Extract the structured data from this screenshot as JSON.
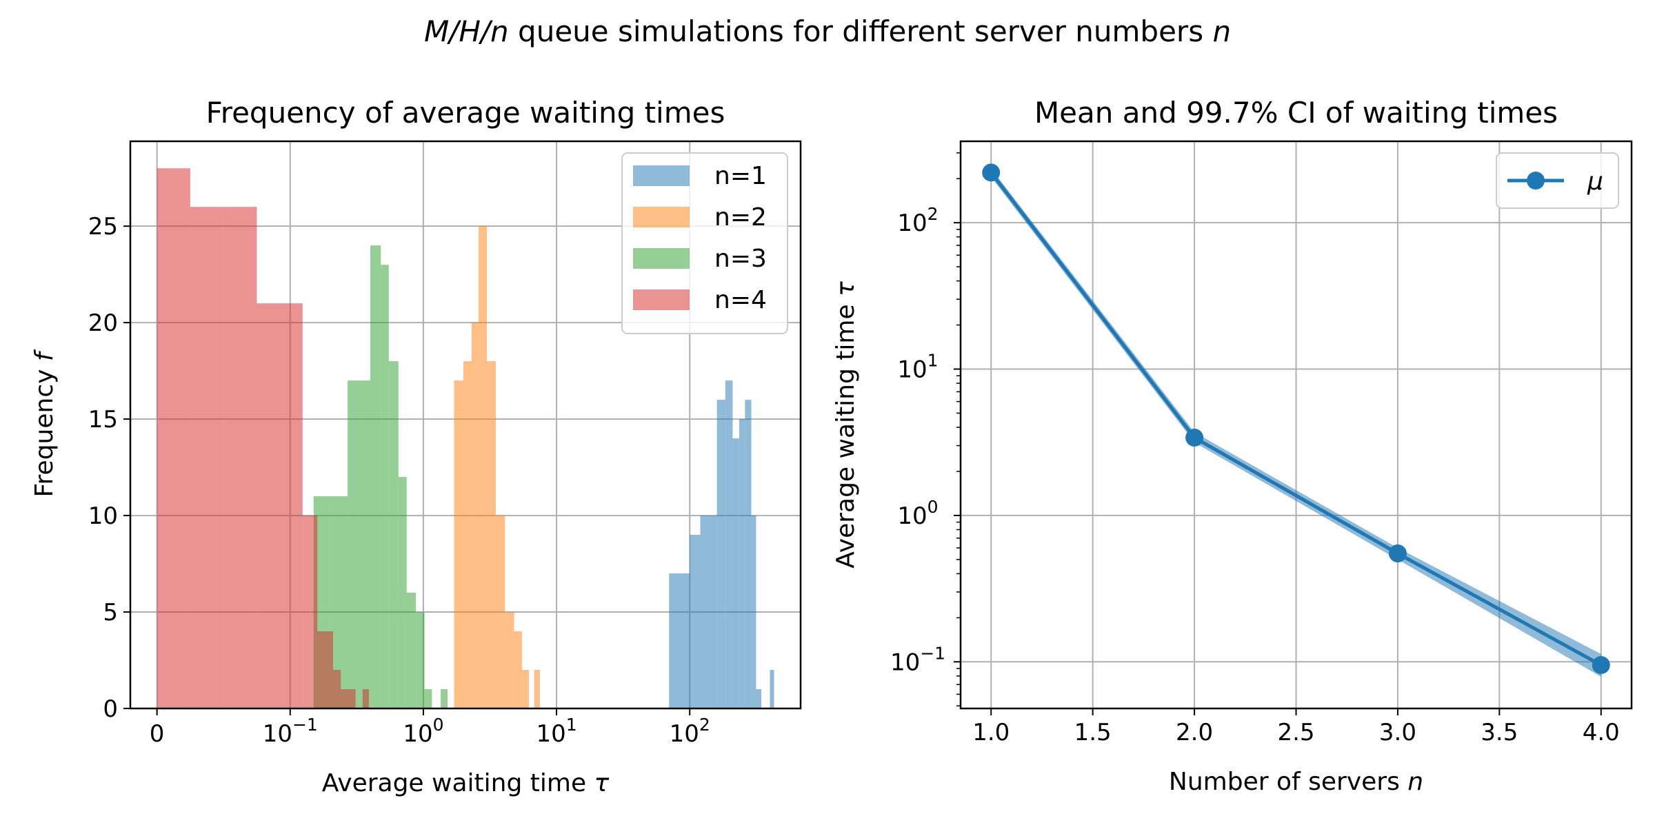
{
  "figure": {
    "suptitle": {
      "prefix_italic": "M/H/n",
      "middle": " queue simulations for different server numbers ",
      "suffix_italic": "n"
    }
  },
  "chart_data": [
    {
      "type": "histogram",
      "title": "Frequency of average waiting times",
      "xlabel": {
        "text": "Average waiting time ",
        "symbol": "τ"
      },
      "ylabel": {
        "text": "Frequency ",
        "symbol": "f"
      },
      "xscale": "symlog",
      "xlim": [
        -0.02,
        680
      ],
      "ylim": [
        0,
        29.4
      ],
      "xticks": [
        {
          "value": 0,
          "label": "0"
        },
        {
          "value": 0.1,
          "base": "10",
          "exp": "−1"
        },
        {
          "value": 1,
          "base": "10",
          "exp": "0"
        },
        {
          "value": 10,
          "base": "10",
          "exp": "1"
        },
        {
          "value": 100,
          "base": "10",
          "exp": "2"
        }
      ],
      "yticks": [
        0,
        5,
        10,
        15,
        20,
        25
      ],
      "grid": true,
      "legend_position": "upper right",
      "series": [
        {
          "name": "n=1",
          "color": "#1f77b4",
          "alpha": 0.5,
          "bins": [
            [
              70,
              85,
              7
            ],
            [
              85,
              100,
              7
            ],
            [
              100,
              120,
              9
            ],
            [
              120,
              140,
              10
            ],
            [
              140,
              160,
              10
            ],
            [
              160,
              185,
              16
            ],
            [
              185,
              210,
              17
            ],
            [
              210,
              235,
              14
            ],
            [
              235,
              260,
              15
            ],
            [
              260,
              290,
              16
            ],
            [
              290,
              315,
              10
            ],
            [
              315,
              345,
              1
            ],
            [
              400,
              430,
              2
            ]
          ]
        },
        {
          "name": "n=2",
          "color": "#ff7f0e",
          "alpha": 0.5,
          "bins": [
            [
              1.7,
              2.0,
              17
            ],
            [
              2.0,
              2.3,
              18
            ],
            [
              2.3,
              2.6,
              20
            ],
            [
              2.6,
              3.0,
              25
            ],
            [
              3.0,
              3.5,
              18
            ],
            [
              3.5,
              4.1,
              10
            ],
            [
              4.1,
              4.8,
              5
            ],
            [
              4.8,
              5.5,
              4
            ],
            [
              5.5,
              6.2,
              2
            ],
            [
              6.8,
              7.5,
              2
            ]
          ]
        },
        {
          "name": "n=3",
          "color": "#2ca02c",
          "alpha": 0.5,
          "bins": [
            [
              0.15,
              0.2,
              11
            ],
            [
              0.2,
              0.27,
              11
            ],
            [
              0.27,
              0.33,
              17
            ],
            [
              0.33,
              0.4,
              17
            ],
            [
              0.4,
              0.48,
              24
            ],
            [
              0.48,
              0.55,
              23
            ],
            [
              0.55,
              0.65,
              18
            ],
            [
              0.65,
              0.75,
              12
            ],
            [
              0.75,
              0.88,
              6
            ],
            [
              0.88,
              1.02,
              5
            ],
            [
              1.02,
              1.16,
              1
            ],
            [
              1.35,
              1.52,
              1
            ]
          ]
        },
        {
          "name": "n=4",
          "color": "#d62728",
          "alpha": 0.5,
          "bins": [
            [
              0.0,
              0.025,
              28
            ],
            [
              0.025,
              0.05,
              26
            ],
            [
              0.05,
              0.075,
              26
            ],
            [
              0.075,
              0.1,
              21
            ],
            [
              0.1,
              0.124,
              21
            ],
            [
              0.124,
              0.142,
              10
            ],
            [
              0.142,
              0.16,
              10
            ],
            [
              0.16,
              0.18,
              4
            ],
            [
              0.18,
              0.21,
              4
            ],
            [
              0.21,
              0.24,
              2
            ],
            [
              0.24,
              0.28,
              1
            ],
            [
              0.28,
              0.31,
              1
            ],
            [
              0.31,
              0.35,
              0
            ],
            [
              0.35,
              0.39,
              1
            ]
          ]
        }
      ]
    },
    {
      "type": "line",
      "title": "Mean and 99.7% CI of waiting times",
      "xlabel": {
        "text": "Number of servers ",
        "symbol": "n"
      },
      "ylabel": {
        "text": "Average waiting time ",
        "symbol": "τ"
      },
      "yscale": "log",
      "xlim": [
        0.85,
        4.15
      ],
      "ylim": [
        0.048,
        360
      ],
      "xticks": [
        "1.0",
        "1.5",
        "2.0",
        "2.5",
        "3.0",
        "3.5",
        "4.0"
      ],
      "yticks": [
        {
          "value": 0.1,
          "base": "10",
          "exp": "−1"
        },
        {
          "value": 1,
          "base": "10",
          "exp": "0"
        },
        {
          "value": 10,
          "base": "10",
          "exp": "1"
        },
        {
          "value": 100,
          "base": "10",
          "exp": "2"
        }
      ],
      "grid": true,
      "legend_position": "upper right",
      "series": [
        {
          "name": "μ",
          "color": "#1f77b4",
          "marker": "circle",
          "x": [
            1,
            2,
            3,
            4
          ],
          "y": [
            220,
            3.4,
            0.55,
            0.095
          ],
          "ci_low": [
            205,
            3.15,
            0.5,
            0.079
          ],
          "ci_high": [
            235,
            3.7,
            0.6,
            0.113
          ]
        }
      ]
    }
  ]
}
